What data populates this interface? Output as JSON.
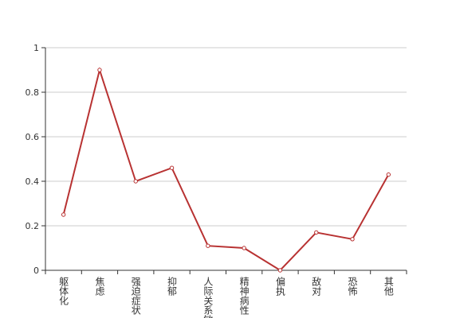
{
  "chart_data": {
    "type": "line",
    "categories": [
      "躯体化",
      "焦虑",
      "强迫症状",
      "抑郁",
      "人际关系敏感",
      "精神病性",
      "偏执",
      "敌对",
      "恐怖",
      "其他"
    ],
    "series": [
      {
        "color": "#b83232",
        "values": [
          0.25,
          0.9,
          0.4,
          0.46,
          0.11,
          0.1,
          0.0,
          0.17,
          0.14,
          0.43
        ]
      }
    ],
    "ylim": [
      0,
      1
    ],
    "yticks": [
      0,
      0.2,
      0.4,
      0.6,
      0.8,
      1
    ],
    "grid": true
  }
}
